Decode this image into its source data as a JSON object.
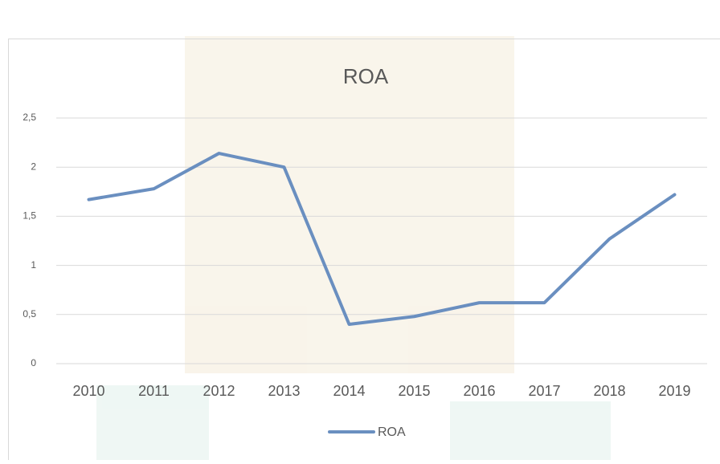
{
  "chart_data": {
    "type": "line",
    "title": "ROA",
    "categories": [
      "2010",
      "2011",
      "2012",
      "2013",
      "2014",
      "2015",
      "2016",
      "2017",
      "2018",
      "2019"
    ],
    "series": [
      {
        "name": "ROA",
        "color": "#6a8fc0",
        "values": [
          1.67,
          1.78,
          2.14,
          2.0,
          0.4,
          0.48,
          0.62,
          0.62,
          1.27,
          1.72
        ]
      }
    ],
    "ylim": [
      0,
      2.5
    ],
    "yticks": [
      0,
      {
        "value": 0.5,
        "label": "0,5"
      },
      1,
      {
        "value": 1.5,
        "label": "1,5"
      },
      2,
      {
        "value": 2.5,
        "label": "2,5"
      }
    ],
    "grid": true,
    "legend": "bottom"
  }
}
